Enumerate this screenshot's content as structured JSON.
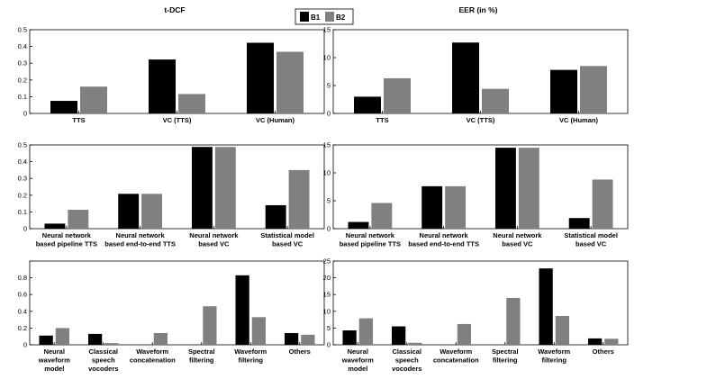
{
  "legend": {
    "entries": [
      {
        "label": "B1",
        "color": "#000000"
      },
      {
        "label": "B2",
        "color": "#808080"
      }
    ]
  },
  "chart_data": [
    {
      "id": "row1-tdcf",
      "type": "bar",
      "title": "t-DCF",
      "categories": [
        [
          "TTS"
        ],
        [
          "VC (TTS)"
        ],
        [
          "VC (Human)"
        ]
      ],
      "series": [
        {
          "name": "B1",
          "values": [
            0.075,
            0.322,
            0.422
          ]
        },
        {
          "name": "B2",
          "values": [
            0.16,
            0.116,
            0.368
          ]
        }
      ],
      "ylim": [
        0,
        0.5
      ],
      "yticks": [
        0,
        0.1,
        0.2,
        0.3,
        0.4,
        0.5
      ],
      "ytick_labels": [
        "0",
        "0.1",
        "0.2",
        "0.3",
        "0.4",
        "0.5"
      ]
    },
    {
      "id": "row1-eer",
      "type": "bar",
      "title": "EER (in %)",
      "categories": [
        [
          "TTS"
        ],
        [
          "VC (TTS)"
        ],
        [
          "VC (Human)"
        ]
      ],
      "series": [
        {
          "name": "B1",
          "values": [
            3.0,
            12.7,
            7.8
          ]
        },
        {
          "name": "B2",
          "values": [
            6.3,
            4.4,
            8.5
          ]
        }
      ],
      "ylim": [
        0,
        15
      ],
      "yticks": [
        0,
        5,
        10,
        15
      ],
      "ytick_labels": [
        "0",
        "5",
        "10",
        "15"
      ]
    },
    {
      "id": "row2-tdcf",
      "type": "bar",
      "title": "",
      "categories": [
        [
          "Neural network",
          "based pipeline TTS"
        ],
        [
          "Neural network",
          "based end-to-end TTS"
        ],
        [
          "Neural network",
          "based VC"
        ],
        [
          "Statistical model",
          "based VC"
        ]
      ],
      "series": [
        {
          "name": "B1",
          "values": [
            0.03,
            0.208,
            0.488,
            0.14
          ]
        },
        {
          "name": "B2",
          "values": [
            0.113,
            0.208,
            0.488,
            0.35
          ]
        }
      ],
      "ylim": [
        0,
        0.5
      ],
      "yticks": [
        0,
        0.1,
        0.2,
        0.3,
        0.4,
        0.5
      ],
      "ytick_labels": [
        "0",
        "0.1",
        "0.2",
        "0.3",
        "0.4",
        "0.5"
      ]
    },
    {
      "id": "row2-eer",
      "type": "bar",
      "title": "",
      "categories": [
        [
          "Neural network",
          "based pipeline TTS"
        ],
        [
          "Neural network",
          "based end-to-end TTS"
        ],
        [
          "Neural network",
          "based VC"
        ],
        [
          "Statistical model",
          "based VC"
        ]
      ],
      "series": [
        {
          "name": "B1",
          "values": [
            1.2,
            7.6,
            14.5,
            1.9
          ]
        },
        {
          "name": "B2",
          "values": [
            4.6,
            7.6,
            14.5,
            8.8
          ]
        }
      ],
      "ylim": [
        0,
        15
      ],
      "yticks": [
        0,
        5,
        10,
        15
      ],
      "ytick_labels": [
        "0",
        "5",
        "10",
        "15"
      ]
    },
    {
      "id": "row3-tdcf",
      "type": "bar",
      "title": "",
      "categories": [
        [
          "Neural",
          "waveform",
          "model"
        ],
        [
          "Classical",
          "speech",
          "vocoders"
        ],
        [
          "Waveform",
          "concatenation"
        ],
        [
          "Spectral",
          "filtering"
        ],
        [
          "Waveform",
          "filtering"
        ],
        [
          "Others"
        ]
      ],
      "series": [
        {
          "name": "B1",
          "values": [
            0.11,
            0.13,
            0.0,
            0.0,
            0.83,
            0.14
          ]
        },
        {
          "name": "B2",
          "values": [
            0.2,
            0.02,
            0.14,
            0.46,
            0.33,
            0.12
          ]
        }
      ],
      "ylim": [
        0,
        1
      ],
      "yticks": [
        0,
        0.2,
        0.4,
        0.6,
        0.8
      ],
      "ytick_labels": [
        "0",
        "0.2",
        "0.4",
        "0.6",
        "0.8"
      ]
    },
    {
      "id": "row3-eer",
      "type": "bar",
      "title": "",
      "categories": [
        [
          "Neural",
          "waveform",
          "model"
        ],
        [
          "Classical",
          "speech",
          "vocoders"
        ],
        [
          "Waveform",
          "concatenation"
        ],
        [
          "Spectral",
          "filtering"
        ],
        [
          "Waveform",
          "filtering"
        ],
        [
          "Others"
        ]
      ],
      "series": [
        {
          "name": "B1",
          "values": [
            4.3,
            5.5,
            0.0,
            0.0,
            22.8,
            1.9
          ]
        },
        {
          "name": "B2",
          "values": [
            7.9,
            0.6,
            6.2,
            14.0,
            8.6,
            1.8
          ]
        }
      ],
      "ylim": [
        0,
        25
      ],
      "yticks": [
        0,
        5,
        10,
        15,
        20,
        25
      ],
      "ytick_labels": [
        "0",
        "5",
        "10",
        "15",
        "20",
        "25"
      ]
    }
  ]
}
